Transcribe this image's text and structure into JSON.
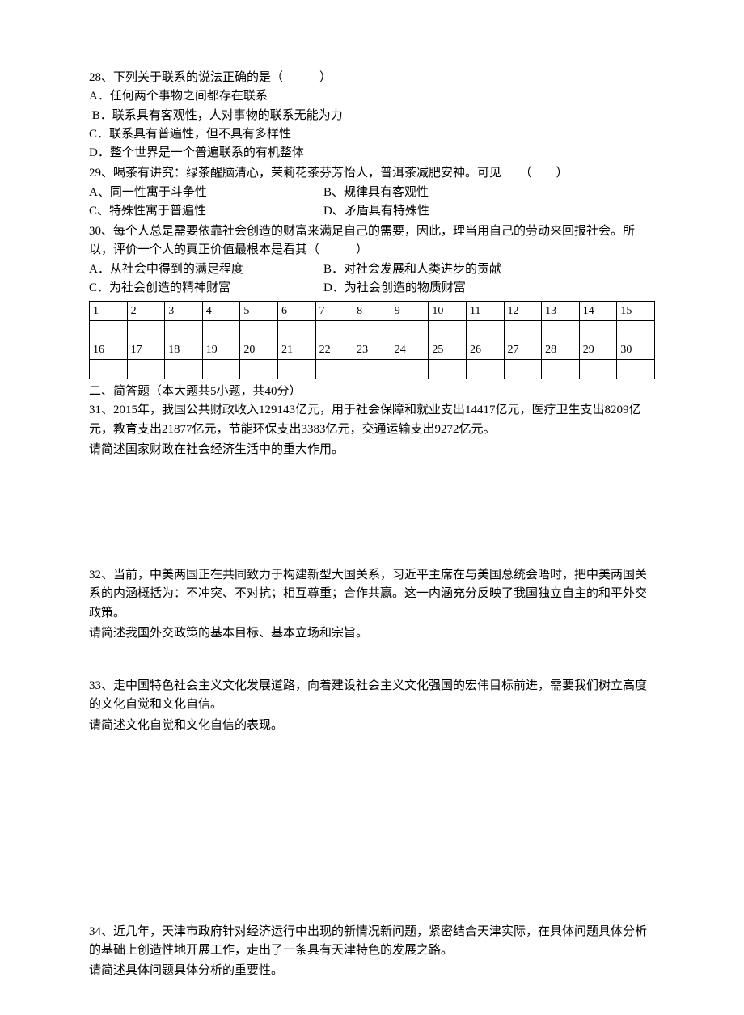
{
  "q28": {
    "stem": "28、下列关于联系的说法正确的是（　　　）",
    "optA": "A．任何两个事物之间都存在联系",
    "optB": " B．联系具有客观性，人对事物的联系无能为力",
    "optC": "C．联系具有普遍性，但不具有多样性",
    "optD": "D．整个世界是一个普遍联系的有机整体"
  },
  "q29": {
    "stem": "29、喝茶有讲究：绿茶醒脑清心，茉莉花茶芬芳怡人，普洱茶减肥安神。可见　　（　　）",
    "optA": "A、同一性寓于斗争性",
    "optB": "B、规律具有客观性",
    "optC": "C、特殊性寓于普遍性",
    "optD": "D、矛盾具有特殊性"
  },
  "q30": {
    "stem": "30、每个人总是需要依靠社会创造的财富来满足自己的需要，因此，理当用自己的劳动来回报社会。所以，评价一个人的真正价值最根本是看其（　　　）",
    "optA": "A．从社会中得到的满足程度",
    "optB": "B．对社会发展和人类进步的贡献",
    "optC": "C．为社会创造的精神财富",
    "optD": "D．为社会创造的物质财富"
  },
  "table": {
    "row1": [
      "1",
      "2",
      "3",
      "4",
      "5",
      "6",
      "7",
      "8",
      "9",
      "10",
      "11",
      "12",
      "13",
      "14",
      "15"
    ],
    "row2": [
      "16",
      "17",
      "18",
      "19",
      "20",
      "21",
      "22",
      "23",
      "24",
      "25",
      "26",
      "27",
      "28",
      "29",
      "30"
    ]
  },
  "section2": "二、简答题（本大题共5小题，共40分）",
  "q31": {
    "body": "31、2015年，我国公共财政收入129143亿元，用于社会保障和就业支出14417亿元，医疗卫生支出8209亿元，教育支出21877亿元，节能环保支出3383亿元，交通运输支出9272亿元。",
    "prompt": "请简述国家财政在社会经济生活中的重大作用。"
  },
  "q32": {
    "body": "32、当前，中美两国正在共同致力于构建新型大国关系，习近平主席在与美国总统会晤时，把中美两国关系的内涵概括为：不冲突、不对抗；相互尊重；合作共赢。这一内涵充分反映了我国独立自主的和平外交政策。",
    "prompt": "请简述我国外交政策的基本目标、基本立场和宗旨。"
  },
  "q33": {
    "body": "33、走中国特色社会主义文化发展道路，向着建设社会主义文化强国的宏伟目标前进，需要我们树立高度的文化自觉和文化自信。",
    "prompt": "请简述文化自觉和文化自信的表现。"
  },
  "q34": {
    "body": "34、近几年，天津市政府针对经济运行中出现的新情况新问题，紧密结合天津实际，在具体问题具体分析的基础上创造性地开展工作，走出了一条具有天津特色的发展之路。",
    "prompt": "请简述具体问题具体分析的重要性。"
  }
}
